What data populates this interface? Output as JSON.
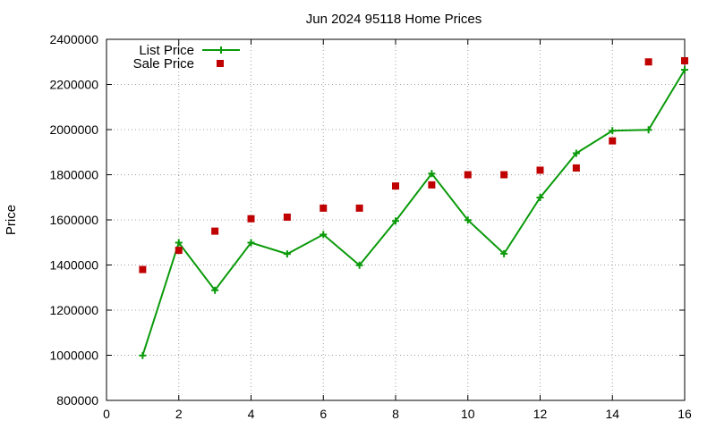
{
  "chart_data": {
    "type": "line",
    "title": "Jun 2024 95118 Home Prices",
    "xlabel": "",
    "ylabel": "Price",
    "xlim": [
      0,
      16
    ],
    "ylim": [
      800000,
      2400000
    ],
    "xticks": [
      0,
      2,
      4,
      6,
      8,
      10,
      12,
      14,
      16
    ],
    "yticks": [
      800000,
      1000000,
      1200000,
      1400000,
      1600000,
      1800000,
      2000000,
      2200000,
      2400000
    ],
    "xtick_labels": [
      "0",
      "2",
      "4",
      "6",
      "8",
      "10",
      "12",
      "14",
      "16"
    ],
    "ytick_labels": [
      "800000",
      "1000000",
      "1200000",
      "1400000",
      "1600000",
      "1800000",
      "2000000",
      "2200000",
      "2400000"
    ],
    "grid": true,
    "legend_position": "top-left",
    "series": [
      {
        "name": "List Price",
        "style": "line-with-plus-markers",
        "color": "#0a9a0a",
        "x": [
          1,
          2,
          3,
          4,
          5,
          6,
          7,
          8,
          9,
          10,
          11,
          12,
          13,
          14,
          15,
          16
        ],
        "y": [
          999000,
          1499000,
          1288000,
          1499000,
          1449000,
          1535000,
          1399000,
          1595000,
          1805000,
          1599000,
          1450000,
          1699000,
          1895000,
          1995000,
          1999000,
          2265000
        ]
      },
      {
        "name": "Sale Price",
        "style": "square-markers",
        "color": "#c00000",
        "x": [
          1,
          2,
          3,
          4,
          5,
          6,
          7,
          8,
          9,
          10,
          11,
          12,
          13,
          14,
          15,
          16
        ],
        "y": [
          1380000,
          1465000,
          1550000,
          1605000,
          1612000,
          1652000,
          1652000,
          1750000,
          1755000,
          1800000,
          1800000,
          1820000,
          1830000,
          1950000,
          2300000,
          2305000
        ]
      }
    ]
  }
}
